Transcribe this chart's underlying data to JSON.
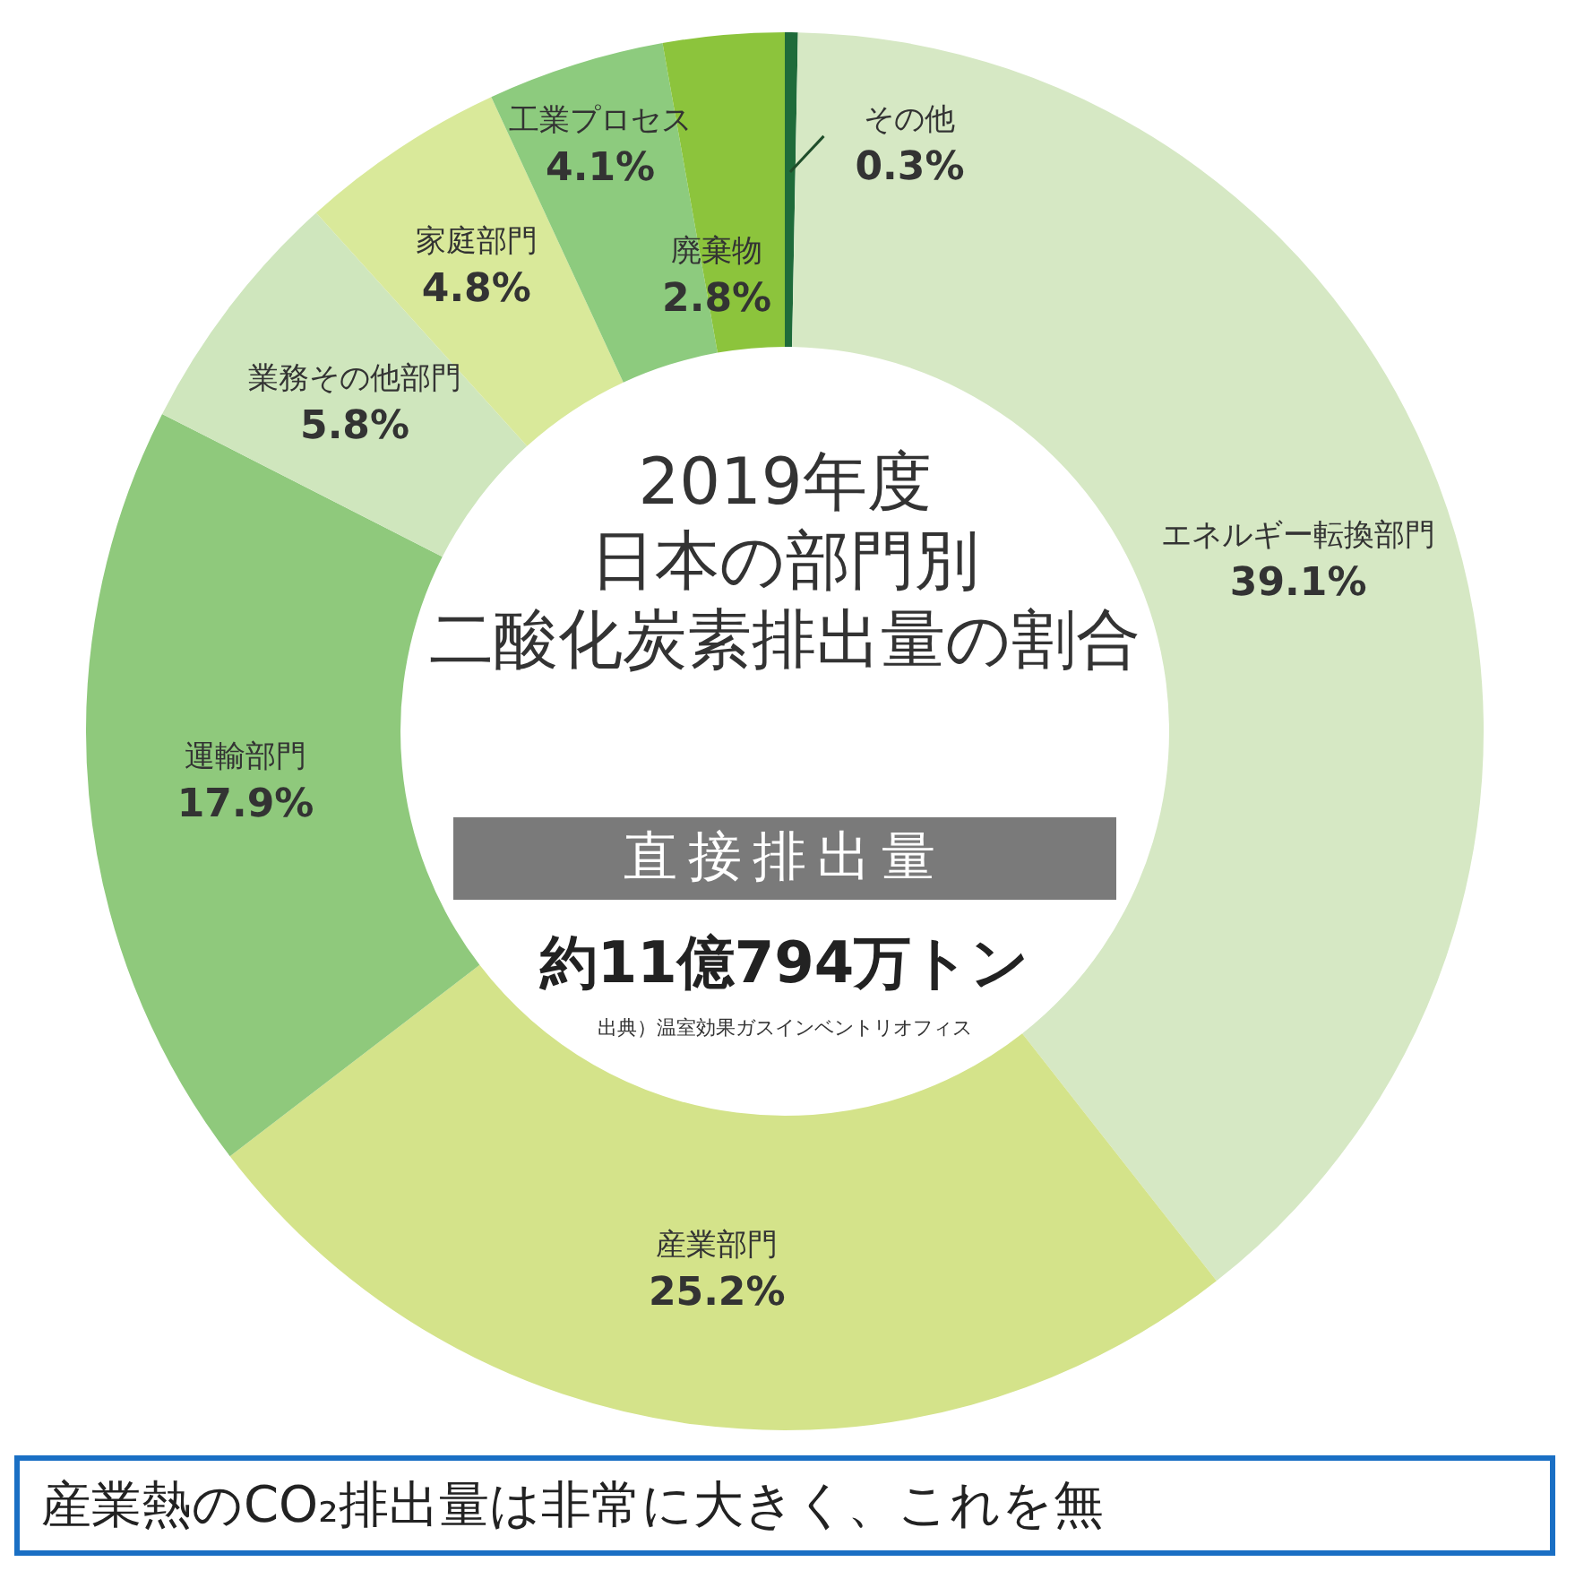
{
  "chart_data": {
    "type": "donut",
    "title": "2019年度日本の部門別二酸化炭素排出量の割合",
    "subtitle": "直接排出量",
    "categories": [
      "その他",
      "エネルギー転換部門",
      "産業部門",
      "運輸部門",
      "業務その他部門",
      "家庭部門",
      "工業プロセス",
      "廃棄物"
    ],
    "values": [
      0.3,
      39.1,
      25.2,
      17.9,
      5.8,
      4.8,
      4.1,
      2.8
    ],
    "value_labels": [
      "0.3%",
      "39.1%",
      "25.2%",
      "17.9%",
      "5.8%",
      "4.8%",
      "4.1%",
      "2.8%"
    ],
    "colors": [
      "#1f6b3a",
      "#d6e8c4",
      "#d4e38a",
      "#8fc97c",
      "#cfe6bd",
      "#d9e99a",
      "#8dcb7e",
      "#8cc43c"
    ],
    "legend": false,
    "annotations": [
      "約11億794万トン",
      "出典）温室効果ガスインベントリオフィス",
      "産業熱のCO₂排出量は非常に大きく、これを無"
    ]
  }
}
